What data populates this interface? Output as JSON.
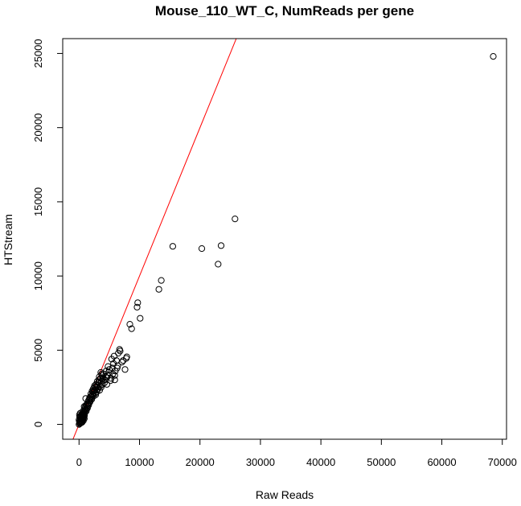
{
  "chart_data": {
    "type": "scatter",
    "title": "Mouse_110_WT_C, NumReads per gene",
    "xlabel": "Raw Reads",
    "ylabel": "HTStream",
    "xlim": [
      -2700,
      70700
    ],
    "ylim": [
      -1000,
      26000
    ],
    "x_ticks": [
      0,
      10000,
      20000,
      30000,
      40000,
      50000,
      60000,
      70000
    ],
    "y_ticks": [
      0,
      5000,
      10000,
      15000,
      20000,
      25000
    ],
    "grid": false,
    "marker": "open-circle",
    "point_color": "#000000",
    "reference_line": {
      "slope": 1,
      "intercept": 0,
      "color": "#ff0000"
    },
    "points": [
      [
        68500,
        24800
      ],
      [
        25800,
        13850
      ],
      [
        23500,
        12050
      ],
      [
        23000,
        10800
      ],
      [
        20300,
        11850
      ],
      [
        15500,
        12000
      ],
      [
        13600,
        9700
      ],
      [
        13200,
        9100
      ],
      [
        10100,
        7150
      ],
      [
        9700,
        8200
      ],
      [
        9600,
        7900
      ],
      [
        8700,
        6450
      ],
      [
        8400,
        6750
      ],
      [
        7900,
        4550
      ],
      [
        7800,
        4450
      ],
      [
        7600,
        3700
      ],
      [
        7100,
        4200
      ],
      [
        6800,
        4950
      ],
      [
        6700,
        5050
      ],
      [
        6500,
        4800
      ],
      [
        6400,
        3950
      ],
      [
        6200,
        4300
      ],
      [
        6000,
        3600
      ],
      [
        5900,
        3000
      ],
      [
        5800,
        4600
      ],
      [
        5700,
        4100
      ],
      [
        5600,
        3400
      ],
      [
        5500,
        3800
      ],
      [
        5400,
        4400
      ],
      [
        5300,
        3100
      ],
      [
        5000,
        3700
      ],
      [
        4900,
        3500
      ],
      [
        4800,
        3900
      ],
      [
        4700,
        3300
      ],
      [
        4600,
        2700
      ],
      [
        4500,
        3600
      ],
      [
        4400,
        3200
      ],
      [
        4300,
        3000
      ],
      [
        4100,
        3400
      ],
      [
        4000,
        3100
      ],
      [
        3900,
        2700
      ],
      [
        3800,
        3300
      ],
      [
        3700,
        2900
      ],
      [
        3600,
        3500
      ],
      [
        3500,
        2600
      ],
      [
        3400,
        2300
      ],
      [
        3300,
        3000
      ],
      [
        3200,
        2800
      ],
      [
        3100,
        2500
      ],
      [
        3000,
        2900
      ],
      [
        2900,
        2300
      ],
      [
        2800,
        2700
      ],
      [
        2700,
        2100
      ],
      [
        2600,
        2500
      ],
      [
        2500,
        2300
      ],
      [
        2400,
        1900
      ],
      [
        2300,
        2200
      ],
      [
        2200,
        2000
      ],
      [
        2100,
        1700
      ],
      [
        2000,
        1900
      ],
      [
        1900,
        1600
      ],
      [
        1800,
        1500
      ],
      [
        1700,
        1700
      ],
      [
        1600,
        1300
      ],
      [
        1500,
        1400
      ],
      [
        1400,
        1100
      ],
      [
        1300,
        1200
      ],
      [
        1200,
        900
      ],
      [
        1100,
        1750
      ],
      [
        1000,
        800
      ],
      [
        950,
        1000
      ],
      [
        900,
        600
      ],
      [
        850,
        1200
      ],
      [
        800,
        500
      ],
      [
        750,
        700
      ],
      [
        700,
        400
      ],
      [
        650,
        900
      ],
      [
        600,
        300
      ],
      [
        550,
        500
      ],
      [
        500,
        650
      ],
      [
        450,
        200
      ],
      [
        400,
        400
      ],
      [
        350,
        550
      ],
      [
        300,
        150
      ],
      [
        250,
        350
      ],
      [
        200,
        750
      ],
      [
        150,
        100
      ],
      [
        100,
        500
      ],
      [
        50,
        200
      ],
      [
        0,
        0
      ],
      [
        0,
        300
      ],
      [
        60,
        650
      ],
      [
        120,
        50
      ],
      [
        180,
        250
      ],
      [
        220,
        450
      ],
      [
        280,
        600
      ],
      [
        330,
        100
      ],
      [
        380,
        300
      ],
      [
        430,
        650
      ],
      [
        480,
        450
      ],
      [
        520,
        150
      ],
      [
        570,
        350
      ],
      [
        620,
        700
      ],
      [
        680,
        550
      ],
      [
        720,
        250
      ],
      [
        780,
        850
      ],
      [
        830,
        650
      ],
      [
        880,
        400
      ],
      [
        930,
        750
      ],
      [
        980,
        1150
      ],
      [
        1050,
        950
      ],
      [
        1150,
        1300
      ],
      [
        1250,
        1050
      ],
      [
        1350,
        1400
      ],
      [
        1450,
        1250
      ],
      [
        1550,
        1600
      ],
      [
        1650,
        1450
      ],
      [
        1750,
        1800
      ],
      [
        1850,
        1700
      ],
      [
        1950,
        2050
      ],
      [
        2050,
        1800
      ],
      [
        2150,
        2250
      ],
      [
        2250,
        1950
      ],
      [
        2350,
        2400
      ],
      [
        2450,
        2150
      ],
      [
        2550,
        2600
      ],
      [
        2650,
        2350
      ],
      [
        2750,
        2000
      ],
      [
        2850,
        2550
      ],
      [
        2950,
        2200
      ],
      [
        3050,
        2650
      ],
      [
        3150,
        2400
      ],
      [
        3250,
        2850
      ],
      [
        3350,
        3200
      ],
      [
        3450,
        2750
      ],
      [
        3550,
        3100
      ],
      [
        3650,
        2500
      ],
      [
        3750,
        3400
      ],
      [
        3850,
        3050
      ],
      [
        4200,
        2800
      ],
      [
        4600,
        3150
      ],
      [
        5200,
        2950
      ],
      [
        5900,
        3300
      ],
      [
        6300,
        3800
      ],
      [
        7300,
        4300
      ]
    ]
  }
}
